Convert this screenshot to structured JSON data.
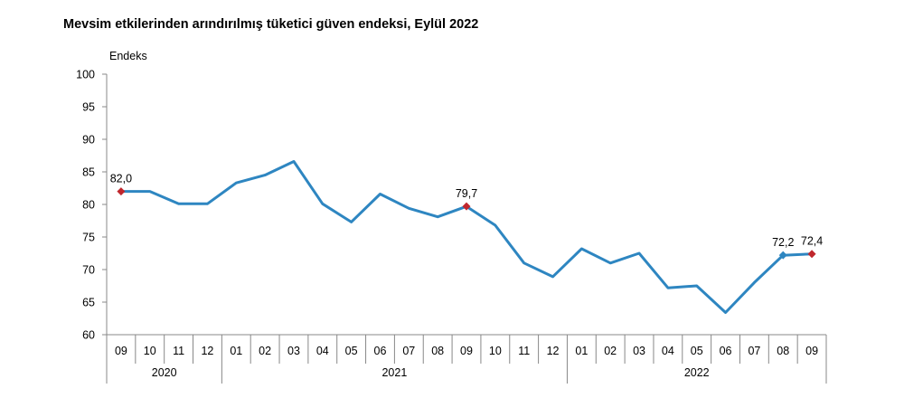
{
  "chart_data": {
    "type": "line",
    "title": "Mevsim etkilerinden arındırılmış tüketici güven endeksi, Eylül 2022",
    "ylabel": "Endeks",
    "xlabel": "",
    "ylim": [
      60,
      100
    ],
    "yticks": [
      60,
      65,
      70,
      75,
      80,
      85,
      90,
      95,
      100
    ],
    "grid": false,
    "categories": [
      "09",
      "10",
      "11",
      "12",
      "01",
      "02",
      "03",
      "04",
      "05",
      "06",
      "07",
      "08",
      "09",
      "10",
      "11",
      "12",
      "01",
      "02",
      "03",
      "04",
      "05",
      "06",
      "07",
      "08",
      "09"
    ],
    "years": [
      {
        "label": "2020",
        "count": 4
      },
      {
        "label": "2021",
        "count": 12
      },
      {
        "label": "2022",
        "count": 9
      }
    ],
    "series": [
      {
        "color": "#2E86C1",
        "values": [
          82.0,
          82.0,
          80.1,
          80.1,
          83.3,
          84.5,
          86.6,
          80.1,
          77.3,
          81.6,
          79.4,
          78.1,
          79.7,
          76.8,
          71.0,
          68.9,
          73.2,
          71.0,
          72.5,
          67.2,
          67.5,
          63.4,
          68.0,
          72.2,
          72.4
        ]
      }
    ],
    "annotations": [
      {
        "index": 0,
        "label": "82,0",
        "marker": "diamond",
        "color": "#C0272D"
      },
      {
        "index": 12,
        "label": "79,7",
        "marker": "diamond",
        "color": "#C0272D"
      },
      {
        "index": 23,
        "label": "72,2",
        "marker": "diamond",
        "color": "#2E86C1"
      },
      {
        "index": 24,
        "label": "72,4",
        "marker": "diamond",
        "color": "#C0272D"
      }
    ]
  }
}
